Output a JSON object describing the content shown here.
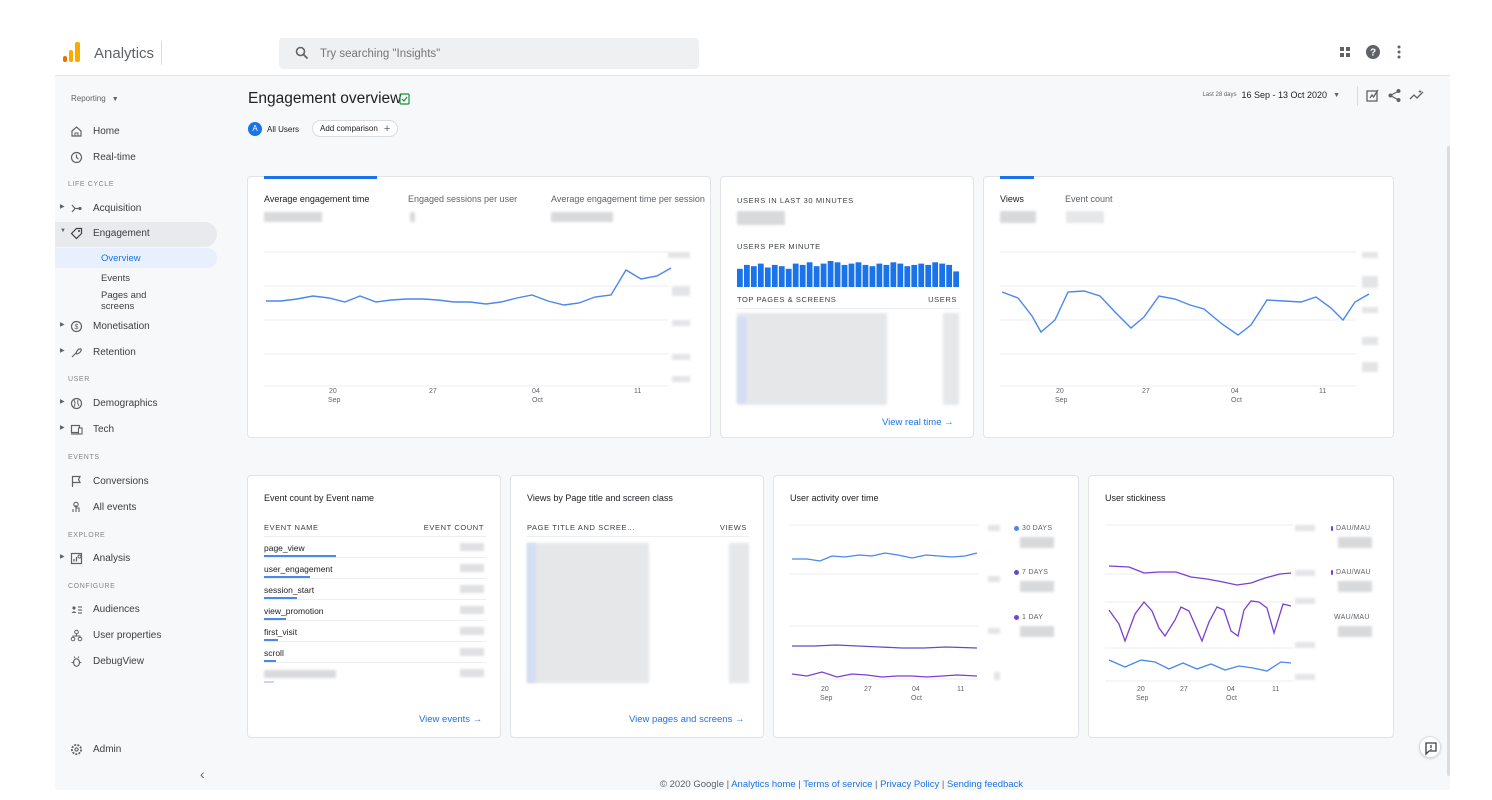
{
  "header": {
    "app_title": "Analytics",
    "search_placeholder": "Try searching \"Insights\""
  },
  "sidebar": {
    "reporting_label": "Reporting",
    "items": [
      {
        "label": "Home"
      },
      {
        "label": "Real-time"
      },
      {
        "section": "LIFE CYCLE"
      },
      {
        "label": "Acquisition"
      },
      {
        "label": "Engagement"
      },
      {
        "sub": [
          "Overview",
          "Events",
          "Pages and screens"
        ]
      },
      {
        "label": "Monetisation"
      },
      {
        "label": "Retention"
      },
      {
        "section": "USER"
      },
      {
        "label": "Demographics"
      },
      {
        "label": "Tech"
      },
      {
        "section": "EVENTS"
      },
      {
        "label": "Conversions"
      },
      {
        "label": "All events"
      },
      {
        "section": "EXPLORE"
      },
      {
        "label": "Analysis"
      },
      {
        "section": "CONFIGURE"
      },
      {
        "label": "Audiences"
      },
      {
        "label": "User properties"
      },
      {
        "label": "DebugView"
      }
    ],
    "labels": {
      "home": "Home",
      "realtime": "Real-time",
      "lifecycle": "LIFE CYCLE",
      "acquisition": "Acquisition",
      "engagement": "Engagement",
      "overview": "Overview",
      "events": "Events",
      "pages1": "Pages and",
      "pages2": "screens",
      "monetisation": "Monetisation",
      "retention": "Retention",
      "user": "USER",
      "demographics": "Demographics",
      "tech": "Tech",
      "events_sec": "EVENTS",
      "conversions": "Conversions",
      "all_events": "All events",
      "explore": "EXPLORE",
      "analysis": "Analysis",
      "configure": "CONFIGURE",
      "audiences": "Audiences",
      "user_properties": "User properties",
      "debugview": "DebugView",
      "admin": "Admin"
    }
  },
  "page": {
    "title": "Engagement overview",
    "chip_all": "All Users",
    "chip_all_initial": "A",
    "add_comparison": "Add comparison",
    "date_prefix": "Last 28 days",
    "date_range": "16 Sep - 13 Oct 2020"
  },
  "engagement_card": {
    "tabs": [
      "Average engagement time",
      "Engaged sessions per user",
      "Average engagement time per session"
    ]
  },
  "realtime_card": {
    "users_30": "USERS IN LAST 30 MINUTES",
    "per_minute": "USERS PER MINUTE",
    "top_pages": "TOP PAGES & SCREENS",
    "users_col": "USERS",
    "link": "View real time",
    "bars": [
      0.7,
      0.85,
      0.8,
      0.9,
      0.75,
      0.85,
      0.8,
      0.7,
      0.9,
      0.85,
      0.95,
      0.8,
      0.9,
      1.0,
      0.95,
      0.85,
      0.9,
      0.95,
      0.85,
      0.8,
      0.9,
      0.85,
      0.95,
      0.9,
      0.8,
      0.85,
      0.9,
      0.85,
      0.95,
      0.9,
      0.85,
      0.6
    ]
  },
  "views_card": {
    "tabs": [
      "Views",
      "Event count"
    ]
  },
  "axis": {
    "t1": "20",
    "t1b": "Sep",
    "t2": "27",
    "t3": "04",
    "t3b": "Oct",
    "t4": "11"
  },
  "event_card": {
    "title": "Event count by Event name",
    "col1": "EVENT NAME",
    "col2": "EVENT COUNT",
    "rows": [
      "page_view",
      "user_engagement",
      "session_start",
      "view_promotion",
      "first_visit",
      "scroll"
    ],
    "link": "View events"
  },
  "pages_card": {
    "title": "Views by Page title and screen class",
    "col1": "PAGE TITLE AND SCREE...",
    "col2": "VIEWS",
    "link": "View pages and screens"
  },
  "activity_card": {
    "title": "User activity over time",
    "legend": [
      "30 DAYS",
      "7 DAYS",
      "1 DAY"
    ]
  },
  "stickiness_card": {
    "title": "User stickiness",
    "legend": [
      "DAU/MAU",
      "DAU/WAU",
      "WAU/MAU"
    ]
  },
  "footer": {
    "copy": "© 2020 Google |",
    "home": "Analytics home",
    "terms": "Terms of service",
    "privacy": "Privacy Policy",
    "feedback": "Sending feedback",
    "sep": "|"
  },
  "colors": {
    "accent": "#1a73e8",
    "series_purple": "#7b3fd1",
    "logo_orange": "#f9ab00",
    "logo_dark_orange": "#e37400"
  }
}
